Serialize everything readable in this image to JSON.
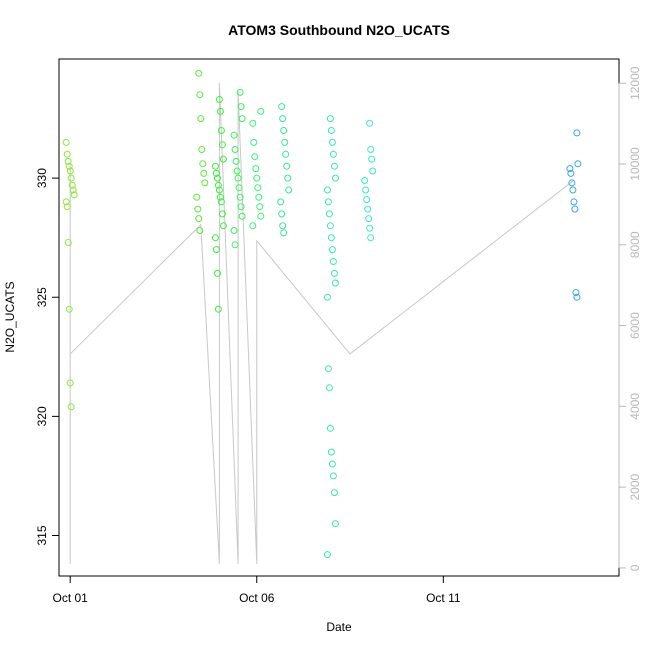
{
  "chart_data": {
    "type": "scatter",
    "title": "ATOM3 Southbound N2O_UCATS",
    "xlabel": "Date",
    "ylabel": "N2O_UCATS",
    "x_ticks": [
      "Oct 01",
      "Oct 06",
      "Oct 11"
    ],
    "y_ticks": [
      315,
      320,
      325,
      330
    ],
    "y2_ticks": [
      0,
      2000,
      4000,
      6000,
      8000,
      10000,
      12000
    ],
    "xlim": [
      "2017-09-30T16:48",
      "2017-10-15T17:00"
    ],
    "ylim": [
      313.3,
      335.0
    ],
    "y2lim": [
      -200,
      12600
    ],
    "line_color": "#c8c8c8",
    "grid": false,
    "series": [
      {
        "color": "#8ee83c",
        "x": "2017-10-01T00:00",
        "values": [
          331.5,
          331.0,
          330.7,
          330.5,
          330.3,
          330.0,
          329.7,
          329.5,
          329.3,
          329.0,
          328.8,
          327.3,
          324.5,
          321.4,
          320.4
        ]
      },
      {
        "color": "#5ee83c",
        "x": "2017-10-04T12:00",
        "values": [
          334.4,
          333.5,
          332.5,
          331.2,
          330.6,
          330.2,
          329.8,
          329.2,
          328.7,
          328.3,
          327.8
        ]
      },
      {
        "color": "#3cf03c",
        "x": "2017-10-05T00:00",
        "values": [
          333.3,
          332.8,
          332.0,
          331.4,
          330.8,
          330.5,
          330.2,
          330.0,
          329.7,
          329.5,
          329.2,
          329.0,
          328.5,
          328.0,
          327.5,
          327.0,
          326.0,
          324.5
        ]
      },
      {
        "color": "#3cf05a",
        "x": "2017-10-05T12:00",
        "values": [
          333.6,
          333.0,
          332.5,
          331.8,
          331.2,
          330.7,
          330.3,
          330.0,
          329.6,
          329.2,
          328.8,
          328.4,
          327.8,
          327.2
        ]
      },
      {
        "color": "#3cf07a",
        "x": "2017-10-06T00:00",
        "values": [
          332.8,
          332.3,
          331.5,
          330.9,
          330.4,
          330.0,
          329.6,
          329.2,
          328.8,
          328.4,
          328.0
        ]
      },
      {
        "color": "#3ce896",
        "x": "2017-10-06T18:00",
        "values": [
          333.0,
          332.5,
          332.0,
          331.5,
          331.0,
          330.5,
          330.0,
          329.5,
          329.0,
          328.5,
          328.0,
          327.7
        ]
      },
      {
        "color": "#3ce8b2",
        "x": "2017-10-08T00:00",
        "values": [
          332.5,
          332.0,
          331.5,
          331.0,
          330.5,
          330.0,
          329.5,
          329.0,
          328.5,
          328.0,
          327.5,
          327.0,
          326.5,
          326.0,
          325.6,
          325.0,
          322.0,
          321.2,
          319.5,
          318.5,
          318.0,
          317.5,
          316.8,
          315.5,
          314.2
        ]
      },
      {
        "color": "#3ce8c8",
        "x": "2017-10-09T00:00",
        "values": [
          332.3,
          331.2,
          330.8,
          330.3,
          329.9,
          329.5,
          329.1,
          328.7,
          328.3,
          327.9,
          327.5
        ]
      },
      {
        "color": "#3ca8e8",
        "x": "2017-10-14T12:00",
        "values": [
          331.9,
          330.6,
          330.4,
          330.2,
          329.8,
          329.5,
          329.0,
          328.7,
          325.2,
          325.0
        ]
      }
    ],
    "altitude_trace": [
      [
        "2017-10-01T00:00",
        10000
      ],
      [
        "2017-10-01T00:00",
        100
      ],
      [
        "2017-10-01T00:00",
        5300
      ],
      [
        "2017-10-04T12:00",
        8500
      ],
      [
        "2017-10-05T00:00",
        100
      ],
      [
        "2017-10-05T00:00",
        12000
      ],
      [
        "2017-10-05T12:00",
        100
      ],
      [
        "2017-10-05T12:00",
        11800
      ],
      [
        "2017-10-06T00:00",
        100
      ],
      [
        "2017-10-06T00:00",
        8100
      ],
      [
        "2017-10-08T12:00",
        5300
      ],
      [
        "2017-10-14T12:00",
        9600
      ]
    ]
  }
}
